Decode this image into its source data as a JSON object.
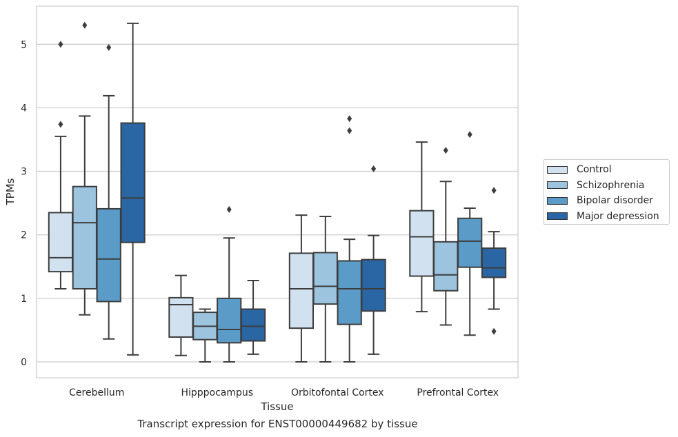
{
  "chart_data": {
    "type": "box",
    "title": "",
    "caption": "Transcript expression for ENST00000449682 by tissue",
    "xlabel": "Tissue",
    "ylabel": "TPMs",
    "ylim": [
      -0.25,
      5.6
    ],
    "yticks": [
      0,
      1,
      2,
      3,
      4,
      5
    ],
    "grid": true,
    "legend_position": "right",
    "categories": [
      "Cerebellum",
      "Hipppocampus",
      "Orbitofontal Cortex",
      "Prefrontal Cortex"
    ],
    "series": [
      {
        "name": "Control",
        "color": "#d1e1f0",
        "boxes": [
          {
            "whislo": 1.15,
            "q1": 1.42,
            "med": 1.64,
            "q3": 2.35,
            "whishi": 3.55,
            "fliers": [
              3.74,
              5.0
            ]
          },
          {
            "whislo": 0.1,
            "q1": 0.39,
            "med": 0.9,
            "q3": 1.01,
            "whishi": 1.36,
            "fliers": []
          },
          {
            "whislo": 0.0,
            "q1": 0.53,
            "med": 1.15,
            "q3": 1.71,
            "whishi": 2.31,
            "fliers": []
          },
          {
            "whislo": 0.79,
            "q1": 1.35,
            "med": 1.97,
            "q3": 2.38,
            "whishi": 3.46,
            "fliers": []
          }
        ]
      },
      {
        "name": "Schizophrenia",
        "color": "#9dc4de",
        "boxes": [
          {
            "whislo": 0.74,
            "q1": 1.15,
            "med": 2.19,
            "q3": 2.76,
            "whishi": 3.87,
            "fliers": [
              5.3
            ]
          },
          {
            "whislo": 0.0,
            "q1": 0.35,
            "med": 0.56,
            "q3": 0.78,
            "whishi": 0.83,
            "fliers": []
          },
          {
            "whislo": 0.0,
            "q1": 0.91,
            "med": 1.19,
            "q3": 1.72,
            "whishi": 2.29,
            "fliers": []
          },
          {
            "whislo": 0.58,
            "q1": 1.12,
            "med": 1.37,
            "q3": 1.89,
            "whishi": 2.84,
            "fliers": [
              3.33
            ]
          }
        ]
      },
      {
        "name": "Bipolar disorder",
        "color": "#5a9bc8",
        "boxes": [
          {
            "whislo": 0.36,
            "q1": 0.95,
            "med": 1.62,
            "q3": 2.41,
            "whishi": 4.19,
            "fliers": [
              4.95
            ]
          },
          {
            "whislo": 0.0,
            "q1": 0.3,
            "med": 0.51,
            "q3": 1.0,
            "whishi": 1.95,
            "fliers": [
              2.4
            ]
          },
          {
            "whislo": 0.0,
            "q1": 0.59,
            "med": 1.15,
            "q3": 1.59,
            "whishi": 1.93,
            "fliers": [
              3.64,
              3.83
            ]
          },
          {
            "whislo": 0.42,
            "q1": 1.49,
            "med": 1.9,
            "q3": 2.26,
            "whishi": 2.42,
            "fliers": [
              3.58
            ]
          }
        ]
      },
      {
        "name": "Major depression",
        "color": "#2a66a4",
        "boxes": [
          {
            "whislo": 0.11,
            "q1": 1.88,
            "med": 2.58,
            "q3": 3.76,
            "whishi": 5.33,
            "fliers": []
          },
          {
            "whislo": 0.12,
            "q1": 0.33,
            "med": 0.56,
            "q3": 0.83,
            "whishi": 1.28,
            "fliers": []
          },
          {
            "whislo": 0.12,
            "q1": 0.8,
            "med": 1.15,
            "q3": 1.61,
            "whishi": 1.99,
            "fliers": [
              3.04
            ]
          },
          {
            "whislo": 0.83,
            "q1": 1.33,
            "med": 1.48,
            "q3": 1.79,
            "whishi": 2.05,
            "fliers": [
              0.48,
              2.7
            ]
          }
        ]
      }
    ]
  }
}
